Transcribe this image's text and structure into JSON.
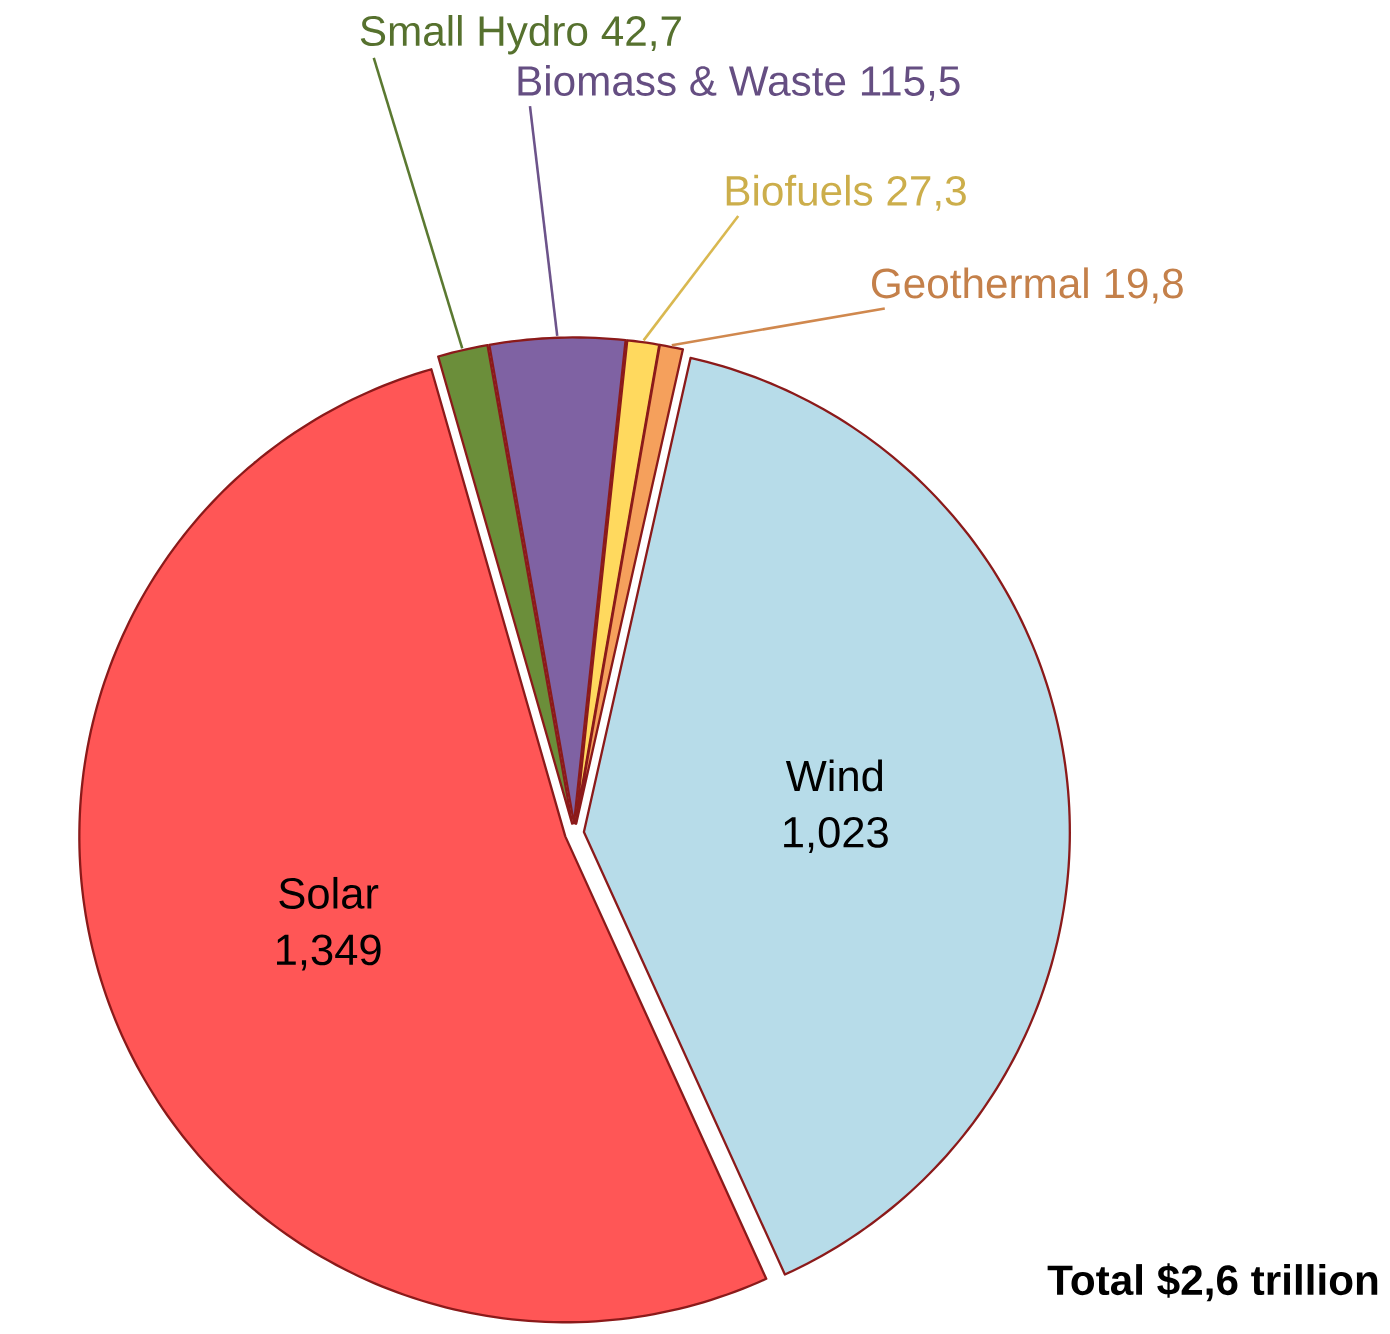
{
  "chart_data": {
    "type": "pie",
    "categories": [
      "Small Hydro",
      "Biomass & Waste",
      "Biofuels",
      "Geothermal",
      "Wind",
      "Solar"
    ],
    "values": [
      42.7,
      115.5,
      27.3,
      19.8,
      1023,
      1349
    ],
    "value_labels": [
      "42,7",
      "115,5",
      "27,3",
      "19,8",
      "1,023",
      "1,349"
    ],
    "colors": [
      "#6b8e3a",
      "#7f62a3",
      "#ffd95e",
      "#f5a05c",
      "#b7dce9",
      "#ff5656"
    ],
    "annotations": [
      "Total $2,6 trillion"
    ]
  }
}
